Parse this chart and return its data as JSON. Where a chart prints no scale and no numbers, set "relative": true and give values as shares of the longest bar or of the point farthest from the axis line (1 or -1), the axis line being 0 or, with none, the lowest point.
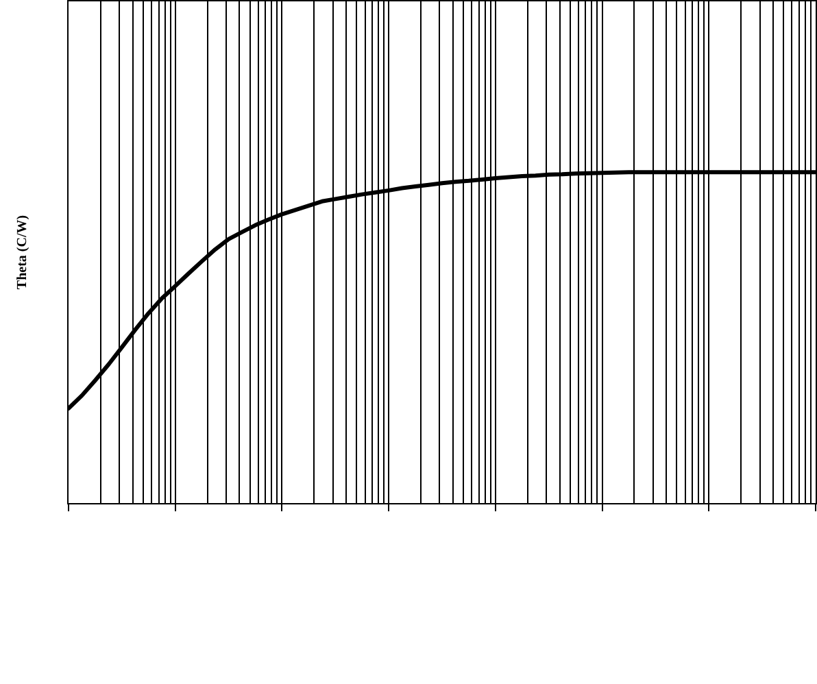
{
  "chart_data": {
    "type": "line",
    "ylabel": "Theta (C/W)",
    "relative": true,
    "grid": "x",
    "line_style": "solid",
    "categories": [
      null,
      null,
      null,
      null,
      null,
      null,
      null,
      null,
      null,
      null,
      null,
      null,
      null,
      null,
      null,
      null,
      null,
      null,
      null,
      null,
      null,
      null,
      null,
      null,
      null,
      null,
      null,
      null,
      null,
      null,
      null,
      null,
      null,
      null,
      null,
      null,
      null,
      null,
      null,
      null,
      null,
      null,
      null,
      null,
      null,
      null,
      null,
      null,
      null,
      null,
      null,
      null,
      null,
      null,
      null,
      null,
      null
    ],
    "series": [
      {
        "color": "#000000",
        "values": [
          0.286,
          0.325,
          0.371,
          0.419,
          0.471,
          0.524,
          0.574,
          0.619,
          0.656,
          0.694,
          0.731,
          0.767,
          0.798,
          0.819,
          0.84,
          0.857,
          0.873,
          0.886,
          0.899,
          0.912,
          0.919,
          0.926,
          0.933,
          0.939,
          0.945,
          0.952,
          0.957,
          0.962,
          0.967,
          0.971,
          0.974,
          0.978,
          0.982,
          0.985,
          0.988,
          0.99,
          0.993,
          0.994,
          0.996,
          0.997,
          0.998,
          0.999,
          1.0,
          1.0,
          1.0,
          1.0,
          1.0,
          1.0,
          1.0,
          1.0,
          1.0,
          1.0,
          1.0,
          1.0,
          1.0,
          1.0,
          1.0
        ]
      }
    ]
  }
}
